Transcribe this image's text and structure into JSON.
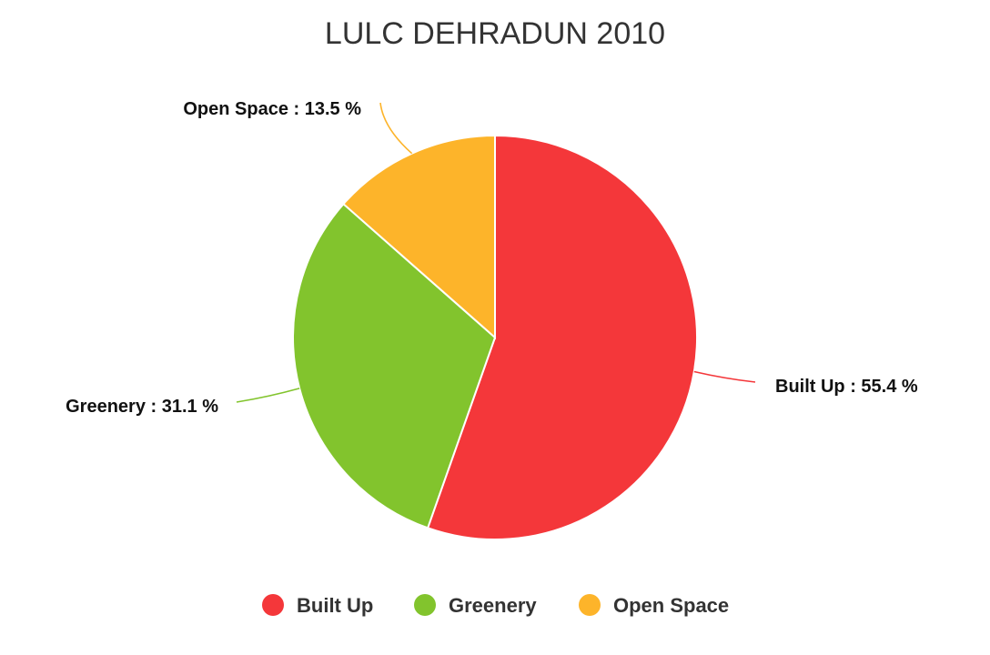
{
  "chart_data": {
    "type": "pie",
    "title": "LULC DEHRADUN 2010",
    "slices": [
      {
        "name": "Built Up",
        "value": 55.4,
        "label": "Built Up : 55.4 %",
        "color": "#F4373A"
      },
      {
        "name": "Greenery",
        "value": 31.1,
        "label": "Greenery : 31.1 %",
        "color": "#82C42D"
      },
      {
        "name": "Open Space",
        "value": 13.5,
        "label": "Open Space : 13.5 %",
        "color": "#FDB42A"
      }
    ],
    "legend": {
      "placement": "bottom",
      "items": [
        "Built Up",
        "Greenery",
        "Open Space"
      ]
    }
  }
}
